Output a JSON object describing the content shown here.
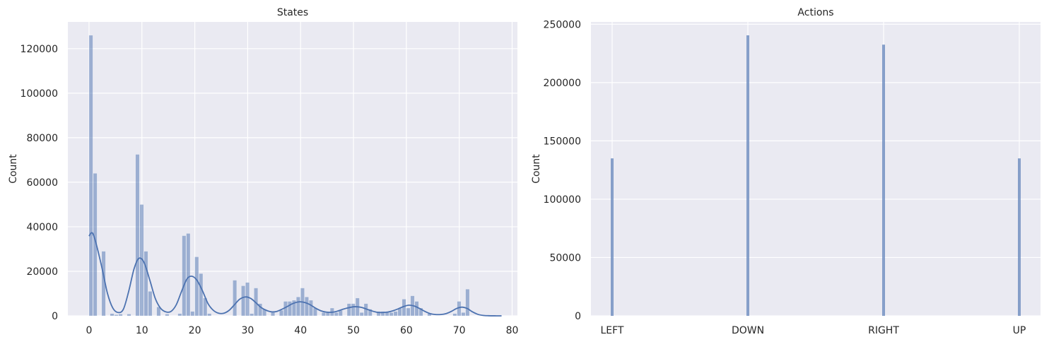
{
  "chart_data": [
    {
      "type": "bar",
      "title": "States",
      "xlabel": "",
      "ylabel": "Count",
      "xlim": [
        -4,
        81
      ],
      "ylim": [
        0,
        132000
      ],
      "xticks": [
        0,
        10,
        20,
        30,
        40,
        50,
        60,
        70,
        80
      ],
      "yticks": [
        0,
        20000,
        40000,
        60000,
        80000,
        100000,
        120000
      ],
      "grid": true,
      "bin_width": 0.8,
      "bars": [
        {
          "x": 0.0,
          "value": 126000
        },
        {
          "x": 0.8,
          "value": 64000
        },
        {
          "x": 2.4,
          "value": 29000
        },
        {
          "x": 4.0,
          "value": 1000
        },
        {
          "x": 4.8,
          "value": 500
        },
        {
          "x": 5.6,
          "value": 800
        },
        {
          "x": 7.2,
          "value": 800
        },
        {
          "x": 8.8,
          "value": 72500
        },
        {
          "x": 9.6,
          "value": 50000
        },
        {
          "x": 10.4,
          "value": 29000
        },
        {
          "x": 11.2,
          "value": 11000
        },
        {
          "x": 12.8,
          "value": 4000
        },
        {
          "x": 14.4,
          "value": 800
        },
        {
          "x": 16.8,
          "value": 1000
        },
        {
          "x": 17.6,
          "value": 36000
        },
        {
          "x": 18.4,
          "value": 37000
        },
        {
          "x": 19.2,
          "value": 2000
        },
        {
          "x": 20.0,
          "value": 26500
        },
        {
          "x": 20.8,
          "value": 19000
        },
        {
          "x": 21.6,
          "value": 8000
        },
        {
          "x": 22.4,
          "value": 1000
        },
        {
          "x": 27.2,
          "value": 16000
        },
        {
          "x": 28.8,
          "value": 13500
        },
        {
          "x": 29.6,
          "value": 15000
        },
        {
          "x": 30.4,
          "value": 1000
        },
        {
          "x": 31.2,
          "value": 12500
        },
        {
          "x": 32.0,
          "value": 5500
        },
        {
          "x": 32.8,
          "value": 3000
        },
        {
          "x": 34.4,
          "value": 1500
        },
        {
          "x": 36.0,
          "value": 2500
        },
        {
          "x": 36.8,
          "value": 6500
        },
        {
          "x": 37.6,
          "value": 6500
        },
        {
          "x": 38.4,
          "value": 7000
        },
        {
          "x": 39.2,
          "value": 8500
        },
        {
          "x": 40.0,
          "value": 12500
        },
        {
          "x": 40.8,
          "value": 8500
        },
        {
          "x": 41.6,
          "value": 7000
        },
        {
          "x": 42.4,
          "value": 3500
        },
        {
          "x": 44.0,
          "value": 1500
        },
        {
          "x": 44.8,
          "value": 1500
        },
        {
          "x": 45.6,
          "value": 3500
        },
        {
          "x": 46.4,
          "value": 1500
        },
        {
          "x": 47.2,
          "value": 2500
        },
        {
          "x": 48.8,
          "value": 5500
        },
        {
          "x": 49.6,
          "value": 5500
        },
        {
          "x": 50.4,
          "value": 8000
        },
        {
          "x": 51.2,
          "value": 1500
        },
        {
          "x": 52.0,
          "value": 5500
        },
        {
          "x": 52.8,
          "value": 3000
        },
        {
          "x": 54.4,
          "value": 2000
        },
        {
          "x": 55.2,
          "value": 2000
        },
        {
          "x": 56.0,
          "value": 1500
        },
        {
          "x": 56.8,
          "value": 1500
        },
        {
          "x": 57.6,
          "value": 2000
        },
        {
          "x": 58.4,
          "value": 3500
        },
        {
          "x": 59.2,
          "value": 7500
        },
        {
          "x": 60.0,
          "value": 3500
        },
        {
          "x": 60.8,
          "value": 9000
        },
        {
          "x": 61.6,
          "value": 6500
        },
        {
          "x": 62.4,
          "value": 3500
        },
        {
          "x": 64.0,
          "value": 1000
        },
        {
          "x": 68.8,
          "value": 1000
        },
        {
          "x": 69.6,
          "value": 6500
        },
        {
          "x": 70.4,
          "value": 1500
        },
        {
          "x": 71.2,
          "value": 12000
        }
      ],
      "kde": [
        [
          0,
          35800
        ],
        [
          0.4,
          37200
        ],
        [
          0.8,
          36600
        ],
        [
          1.5,
          31000
        ],
        [
          2.5,
          21000
        ],
        [
          3.5,
          10000
        ],
        [
          4.5,
          3500
        ],
        [
          5.5,
          1500
        ],
        [
          6.5,
          3000
        ],
        [
          7.5,
          11000
        ],
        [
          8.5,
          21000
        ],
        [
          9.4,
          25800
        ],
        [
          10.4,
          24000
        ],
        [
          11.5,
          16000
        ],
        [
          12.5,
          8000
        ],
        [
          13.5,
          3500
        ],
        [
          14.5,
          1800
        ],
        [
          15.5,
          2000
        ],
        [
          16.5,
          5000
        ],
        [
          17.5,
          11000
        ],
        [
          18.5,
          16500
        ],
        [
          19.4,
          17800
        ],
        [
          20.4,
          16000
        ],
        [
          21.5,
          11000
        ],
        [
          22.5,
          5500
        ],
        [
          23.5,
          2500
        ],
        [
          24.5,
          1200
        ],
        [
          25.5,
          1200
        ],
        [
          26.5,
          2500
        ],
        [
          27.5,
          5000
        ],
        [
          28.5,
          7500
        ],
        [
          29.6,
          8500
        ],
        [
          30.6,
          7800
        ],
        [
          31.5,
          6000
        ],
        [
          32.5,
          3800
        ],
        [
          33.5,
          2500
        ],
        [
          34.5,
          1800
        ],
        [
          35.5,
          2000
        ],
        [
          36.5,
          3000
        ],
        [
          37.5,
          4200
        ],
        [
          38.5,
          5500
        ],
        [
          39.8,
          6300
        ],
        [
          40.8,
          6000
        ],
        [
          41.8,
          5000
        ],
        [
          42.8,
          3500
        ],
        [
          43.8,
          2300
        ],
        [
          44.8,
          1700
        ],
        [
          45.8,
          1600
        ],
        [
          46.8,
          2000
        ],
        [
          47.8,
          2800
        ],
        [
          48.8,
          3500
        ],
        [
          50.2,
          4100
        ],
        [
          51.5,
          3800
        ],
        [
          52.5,
          3000
        ],
        [
          53.5,
          2200
        ],
        [
          54.5,
          1600
        ],
        [
          55.5,
          1500
        ],
        [
          56.5,
          1700
        ],
        [
          57.5,
          2300
        ],
        [
          58.5,
          3200
        ],
        [
          59.5,
          4200
        ],
        [
          60.5,
          4800
        ],
        [
          61.5,
          4400
        ],
        [
          62.5,
          3300
        ],
        [
          63.5,
          2000
        ],
        [
          64.5,
          1000
        ],
        [
          65.5,
          600
        ],
        [
          66.5,
          600
        ],
        [
          67.5,
          1000
        ],
        [
          68.5,
          2000
        ],
        [
          69.5,
          3300
        ],
        [
          70.5,
          3900
        ],
        [
          71.5,
          3300
        ],
        [
          72.5,
          1800
        ],
        [
          73.5,
          700
        ],
        [
          74.5,
          200
        ],
        [
          75.5,
          60
        ],
        [
          77,
          10
        ],
        [
          78,
          0
        ]
      ]
    },
    {
      "type": "bar",
      "title": "Actions",
      "xlabel": "",
      "ylabel": "Count",
      "categories": [
        "LEFT",
        "DOWN",
        "RIGHT",
        "UP"
      ],
      "values": [
        135000,
        240500,
        232500,
        135000
      ],
      "ylim": [
        0,
        252000
      ],
      "yticks": [
        0,
        50000,
        100000,
        150000,
        200000,
        250000
      ],
      "grid": true
    }
  ],
  "colors": {
    "background": "#eaeaf2",
    "grid": "#ffffff",
    "bar": "#8da0cb",
    "bar_fill": "#4c72b0",
    "kde": "#4c72b0",
    "text": "#262626"
  }
}
